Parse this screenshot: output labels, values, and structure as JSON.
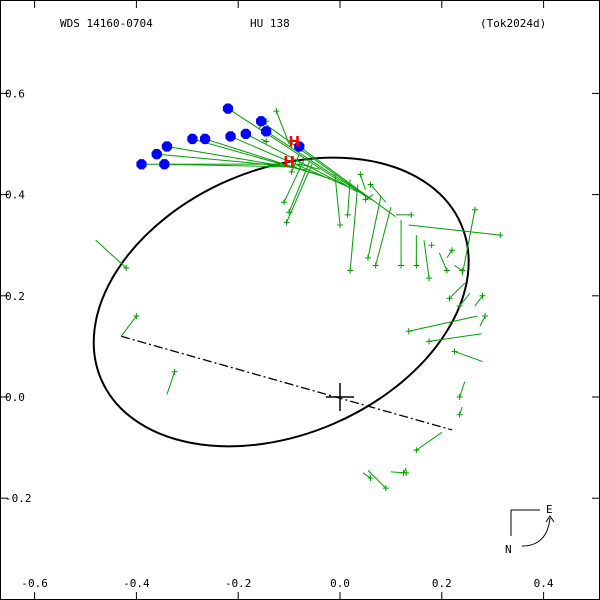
{
  "header": {
    "wds_id": "WDS 14160-0704",
    "discoverer": "HU  138",
    "reference": "(Tok2024d)"
  },
  "compass": {
    "east_label": "E",
    "north_label": "N"
  },
  "colors": {
    "orbit": "#000000",
    "residual": "#00a000",
    "micrometer": "#00a000",
    "speckle": "#0000ff",
    "hipparcos": "#ff0000",
    "node_line": "#000000"
  },
  "chart_data": {
    "type": "scatter",
    "title": "",
    "xlabel": "",
    "ylabel": "",
    "xlim": [
      -0.66,
      0.5
    ],
    "ylim": [
      -0.39,
      0.7
    ],
    "x_ticks": [
      -0.6,
      -0.4,
      -0.2,
      0.0,
      0.2,
      0.4
    ],
    "x_tick_labels": [
      "-0.6",
      "-0.4",
      "-0.2",
      "0.0",
      "0.2",
      "0.4"
    ],
    "y_ticks": [
      0.6,
      0.4,
      0.2,
      0.0,
      -0.2
    ],
    "y_tick_labels": [
      "0.6",
      "0.4",
      "0.2",
      "0.0",
      "-0.2"
    ],
    "origin_marker": [
      0,
      0
    ],
    "orbit": {
      "center": [
        -0.1155,
        0.1878
      ],
      "semi_axes": [
        0.385,
        0.262
      ],
      "rotation_deg": -23.3
    },
    "node_line": [
      [
        -0.43,
        0.12
      ],
      [
        0.22,
        -0.065
      ]
    ],
    "speckle_points": [
      [
        -0.39,
        0.46
      ],
      [
        -0.36,
        0.48
      ],
      [
        -0.34,
        0.495
      ],
      [
        -0.345,
        0.46
      ],
      [
        -0.29,
        0.51
      ],
      [
        -0.265,
        0.51
      ],
      [
        -0.215,
        0.515
      ],
      [
        -0.185,
        0.52
      ],
      [
        -0.22,
        0.57
      ],
      [
        -0.155,
        0.545
      ],
      [
        -0.145,
        0.525
      ],
      [
        -0.08,
        0.495
      ]
    ],
    "hipparcos_points": [
      [
        -0.09,
        0.505
      ],
      [
        -0.1,
        0.465
      ]
    ],
    "micrometer_residuals": [
      [
        [
          -0.48,
          0.31
        ],
        [
          -0.42,
          0.255
        ]
      ],
      [
        [
          -0.43,
          0.12
        ],
        [
          -0.4,
          0.16
        ]
      ],
      [
        [
          -0.34,
          0.005
        ],
        [
          -0.325,
          0.05
        ]
      ],
      [
        [
          -0.16,
          0.53
        ],
        [
          -0.145,
          0.545
        ]
      ],
      [
        [
          -0.155,
          0.51
        ],
        [
          -0.145,
          0.505
        ]
      ],
      [
        [
          -0.1,
          0.5
        ],
        [
          -0.125,
          0.565
        ]
      ],
      [
        [
          -0.08,
          0.48
        ],
        [
          -0.095,
          0.445
        ]
      ],
      [
        [
          -0.07,
          0.47
        ],
        [
          -0.11,
          0.385
        ]
      ],
      [
        [
          -0.06,
          0.465
        ],
        [
          -0.1,
          0.365
        ]
      ],
      [
        [
          -0.055,
          0.46
        ],
        [
          -0.105,
          0.345
        ]
      ],
      [
        [
          -0.04,
          0.45
        ],
        [
          -0.08,
          0.46
        ]
      ],
      [
        [
          -0.01,
          0.44
        ],
        [
          0.0,
          0.34
        ]
      ],
      [
        [
          0.02,
          0.43
        ],
        [
          0.015,
          0.36
        ]
      ],
      [
        [
          0.035,
          0.42
        ],
        [
          0.02,
          0.25
        ]
      ],
      [
        [
          0.05,
          0.41
        ],
        [
          0.04,
          0.44
        ]
      ],
      [
        [
          0.065,
          0.4
        ],
        [
          0.05,
          0.39
        ]
      ],
      [
        [
          0.08,
          0.395
        ],
        [
          0.055,
          0.275
        ]
      ],
      [
        [
          0.09,
          0.385
        ],
        [
          0.06,
          0.42
        ]
      ],
      [
        [
          0.1,
          0.375
        ],
        [
          0.07,
          0.26
        ]
      ],
      [
        [
          0.11,
          0.36
        ],
        [
          0.14,
          0.36
        ]
      ],
      [
        [
          0.12,
          0.35
        ],
        [
          0.12,
          0.26
        ]
      ],
      [
        [
          0.135,
          0.34
        ],
        [
          0.315,
          0.32
        ]
      ],
      [
        [
          0.15,
          0.32
        ],
        [
          0.15,
          0.26
        ]
      ],
      [
        [
          0.165,
          0.31
        ],
        [
          0.175,
          0.235
        ]
      ],
      [
        [
          0.18,
          0.3
        ],
        [
          0.18,
          0.3
        ]
      ],
      [
        [
          0.195,
          0.285
        ],
        [
          0.21,
          0.25
        ]
      ],
      [
        [
          0.21,
          0.275
        ],
        [
          0.22,
          0.29
        ]
      ],
      [
        [
          0.225,
          0.26
        ],
        [
          0.24,
          0.25
        ]
      ],
      [
        [
          0.24,
          0.24
        ],
        [
          0.265,
          0.37
        ]
      ],
      [
        [
          0.245,
          0.225
        ],
        [
          0.215,
          0.195
        ]
      ],
      [
        [
          0.255,
          0.205
        ],
        [
          0.235,
          0.18
        ]
      ],
      [
        [
          0.265,
          0.18
        ],
        [
          0.28,
          0.2
        ]
      ],
      [
        [
          0.27,
          0.16
        ],
        [
          0.135,
          0.13
        ]
      ],
      [
        [
          0.275,
          0.14
        ],
        [
          0.285,
          0.16
        ]
      ],
      [
        [
          0.278,
          0.125
        ],
        [
          0.175,
          0.11
        ]
      ],
      [
        [
          0.28,
          0.07
        ],
        [
          0.225,
          0.09
        ]
      ],
      [
        [
          0.245,
          0.03
        ],
        [
          0.235,
          0.0
        ]
      ],
      [
        [
          0.24,
          -0.02
        ],
        [
          0.235,
          -0.035
        ]
      ],
      [
        [
          0.2,
          -0.07
        ],
        [
          0.15,
          -0.105
        ]
      ],
      [
        [
          0.13,
          -0.14
        ],
        [
          0.125,
          -0.15
        ]
      ],
      [
        [
          0.1,
          -0.148
        ],
        [
          0.13,
          -0.15
        ]
      ],
      [
        [
          0.045,
          -0.15
        ],
        [
          0.06,
          -0.16
        ]
      ],
      [
        [
          0.055,
          -0.145
        ],
        [
          0.09,
          -0.18
        ]
      ]
    ]
  }
}
